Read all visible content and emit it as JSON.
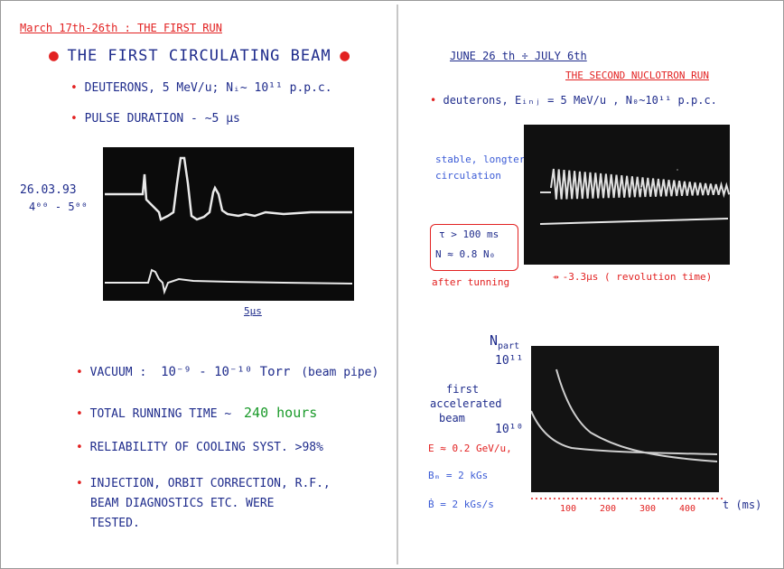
{
  "left": {
    "header": "March 17th-26th :  THE FIRST RUN",
    "title": "THE FIRST CIRCULATING BEAM",
    "bullets_top": [
      "DEUTERONS, 5 MeV/u;  Nᵢ~ 10¹¹ p.p.c.",
      "PULSE DURATION  -  ~5 μs"
    ],
    "scope_date": "26.03.93",
    "scope_time": "4⁰⁰ - 5⁰⁰",
    "scale_label": "5μs",
    "vacuum_label": "VACUUM :",
    "vacuum_value": "10⁻⁹ - 10⁻¹⁰ Torr",
    "vacuum_note": "(beam pipe)",
    "running_label": "TOTAL RUNNING TIME  ~",
    "running_value": "240 hours",
    "reliability": "RELIABILITY OF COOLING SYST. >98%",
    "injection": [
      "INJECTION, ORBIT CORRECTION, R.F.,",
      "BEAM DIAGNOSTICS  ETC.  WERE",
      "TESTED."
    ]
  },
  "right": {
    "header_dates": "JUNE 26 th  ÷  JULY 6th",
    "title": "THE SECOND NUCLOTRON RUN",
    "subtitle": "deuterons,  Eᵢₙⱼ = 5 MeV/u ,  N₀~10¹¹ p.p.c.",
    "stable_label": [
      "stable, longterm",
      "circulation"
    ],
    "box_lines": [
      "τ > 100 ms",
      "N ≈ 0.8 N₀"
    ],
    "after_tuning": "after tunning",
    "revolution": "-3.3μs  ( revolution time)",
    "npart": "N",
    "npart_sub": "part",
    "y_ticks": [
      "10¹¹",
      "10¹⁰"
    ],
    "first_accel": [
      "first",
      "accelerated",
      "beam"
    ],
    "energy": "E ≈ 0.2 GeV/u,",
    "b_field": "Bₘ = 2 kGs",
    "b_rate": "Ḃ = 2 kGs/s",
    "x_ticks": [
      "100",
      "200",
      "300",
      "400"
    ],
    "x_unit": "t  (ms)"
  },
  "colors": {
    "ink_navy": "#1f2c8c",
    "ink_red": "#e22121",
    "ink_green": "#1a9a2a",
    "ink_blue": "#3b5bd6",
    "scope_bg": "#0b0b0b"
  }
}
